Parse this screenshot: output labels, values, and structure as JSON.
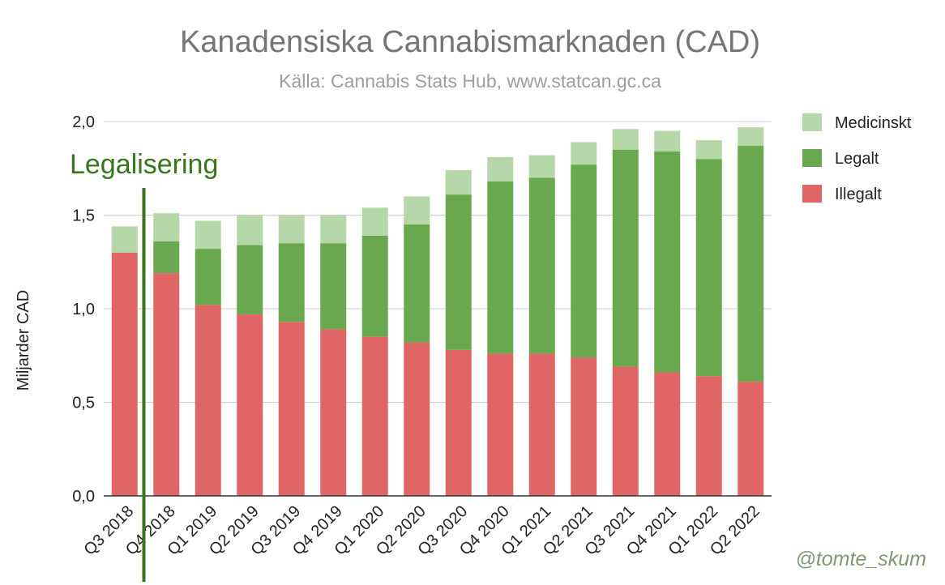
{
  "chart_data": {
    "type": "bar",
    "stacked": true,
    "title": "Kanadensiska Cannabismarknaden (CAD)",
    "subtitle": "Källa: Cannabis Stats Hub, www.statcan.gc.ca",
    "xlabel": "",
    "ylabel": "Miljarder CAD",
    "ylim": [
      0,
      2.0
    ],
    "yticks": [
      "0,0",
      "0,5",
      "1,0",
      "1,5",
      "2,0"
    ],
    "grid": true,
    "legend_position": "right",
    "categories": [
      "Q3 2018",
      "Q4 2018",
      "Q1 2019",
      "Q2 2019",
      "Q3 2019",
      "Q4 2019",
      "Q1 2020",
      "Q2 2020",
      "Q3 2020",
      "Q4 2020",
      "Q1 2021",
      "Q2 2021",
      "Q3 2021",
      "Q4 2021",
      "Q1 2022",
      "Q2 2022"
    ],
    "series": [
      {
        "name": "Illegalt",
        "color": "#e06666",
        "values": [
          1.3,
          1.19,
          1.02,
          0.97,
          0.93,
          0.89,
          0.85,
          0.82,
          0.78,
          0.76,
          0.76,
          0.74,
          0.69,
          0.66,
          0.64,
          0.61
        ]
      },
      {
        "name": "Legalt",
        "color": "#6aa84f",
        "values": [
          0.0,
          0.17,
          0.3,
          0.37,
          0.42,
          0.46,
          0.54,
          0.63,
          0.83,
          0.92,
          0.94,
          1.03,
          1.16,
          1.18,
          1.16,
          1.26
        ]
      },
      {
        "name": "Medicinskt",
        "color": "#b6d7a8",
        "values": [
          0.14,
          0.15,
          0.15,
          0.16,
          0.15,
          0.15,
          0.15,
          0.15,
          0.13,
          0.13,
          0.12,
          0.12,
          0.11,
          0.11,
          0.1,
          0.1
        ]
      }
    ],
    "legend_order": [
      "Medicinskt",
      "Legalt",
      "Illegalt"
    ],
    "annotations": [
      {
        "text": "Legalisering",
        "position_category": "Q4 2018",
        "color": "#38761d"
      }
    ]
  },
  "credit": "@tomte_skum"
}
